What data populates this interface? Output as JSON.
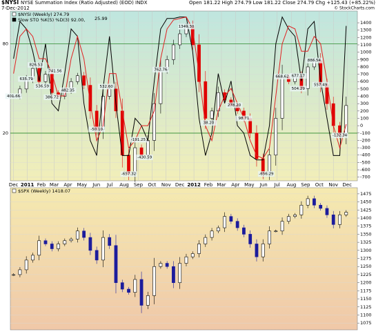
{
  "header": {
    "symbol": "$NYSI",
    "name": "NYSE Summation Index (Ratio Adjusted) (EOD)",
    "exchange": "INDX",
    "date": "7-Dec-2012",
    "ohlc": "Open 181.22  High 274.79  Low 181.22  Close 274.79  Chg +125.43 (+85.22%)",
    "credit": "© StockCharts.com"
  },
  "chart_data": [
    {
      "type": "candlestick",
      "legend": [
        "$NYSI (Weekly) 274.79",
        "Slow STO %K(5) %D(3) 92.00,",
        "25.99"
      ],
      "x": [
        0,
        2,
        4,
        6,
        8,
        10,
        12,
        14,
        16,
        18,
        20,
        22,
        24,
        26,
        28,
        30,
        32,
        34,
        36,
        38,
        40,
        42,
        44,
        46,
        48,
        50,
        52,
        54,
        56,
        58,
        60,
        62,
        64,
        66,
        68,
        70,
        72,
        74,
        76,
        78,
        80,
        82,
        84,
        86,
        88,
        90,
        92,
        94,
        96,
        98,
        100,
        102,
        104
      ],
      "xlim": [
        -1,
        107.5
      ],
      "xticks": [
        {
          "value": 0,
          "label": "Dec"
        },
        {
          "value": 4.3,
          "label": "2011"
        },
        {
          "value": 8.7,
          "label": "Feb"
        },
        {
          "value": 12.7,
          "label": "Mar"
        },
        {
          "value": 17,
          "label": "Apr"
        },
        {
          "value": 21.4,
          "label": "May"
        },
        {
          "value": 25.9,
          "label": "Jun"
        },
        {
          "value": 30.1,
          "label": "Jul"
        },
        {
          "value": 34.6,
          "label": "Aug"
        },
        {
          "value": 39,
          "label": "Sep"
        },
        {
          "value": 43.3,
          "label": "Oct"
        },
        {
          "value": 47.7,
          "label": "Nov"
        },
        {
          "value": 52,
          "label": "Dec"
        },
        {
          "value": 56.4,
          "label": "2012"
        },
        {
          "value": 60.9,
          "label": "Feb"
        },
        {
          "value": 65,
          "label": "Mar"
        },
        {
          "value": 69.4,
          "label": "Apr"
        },
        {
          "value": 73.7,
          "label": "May"
        },
        {
          "value": 78.2,
          "label": "Jun"
        },
        {
          "value": 82.4,
          "label": "Jul"
        },
        {
          "value": 86.9,
          "label": "Aug"
        },
        {
          "value": 91.3,
          "label": "Sep"
        },
        {
          "value": 95.6,
          "label": "Oct"
        },
        {
          "value": 100,
          "label": "Nov"
        },
        {
          "value": 104.3,
          "label": "Dec"
        }
      ],
      "ylim": [
        -750,
        1560
      ],
      "yticks": [
        -700,
        -600,
        -500,
        -400,
        -300,
        -200,
        -100,
        0,
        100,
        200,
        300,
        400,
        500,
        600,
        700,
        800,
        900,
        1000,
        1100,
        1200,
        1300,
        1400
      ],
      "y2lim": [
        -12,
        102
      ],
      "y2ticks": [
        20,
        80
      ],
      "series": [
        {
          "name": "$NYSI",
          "color": "#e00000",
          "values": [
            401,
            500,
            635,
            780,
            600,
            700,
            450,
            400,
            482,
            600,
            680,
            550,
            200,
            -50,
            400,
            500,
            200,
            -400,
            -657,
            -300,
            -400,
            -200,
            300,
            762,
            900,
            1100,
            1250,
            1349,
            1100,
            600,
            100,
            200,
            450,
            350,
            278,
            200,
            98,
            -100,
            -450,
            -656,
            -400,
            100,
            668,
            600,
            677,
            504,
            800,
            886,
            557,
            300,
            0,
            -132,
            274.79
          ]
        },
        {
          "name": "%K",
          "color": "#000000",
          "axis": "y2",
          "values": [
            70,
            95,
            90,
            75,
            55,
            80,
            40,
            35,
            60,
            90,
            85,
            40,
            15,
            5,
            50,
            85,
            40,
            5,
            5,
            30,
            25,
            15,
            55,
            90,
            97,
            97,
            98,
            98,
            75,
            30,
            5,
            20,
            60,
            40,
            55,
            25,
            20,
            5,
            2,
            2,
            25,
            80,
            98,
            90,
            85,
            55,
            90,
            95,
            55,
            30,
            5,
            5,
            92
          ]
        },
        {
          "name": "%D",
          "color": "#e02020",
          "axis": "y2",
          "values": [
            60,
            85,
            90,
            85,
            70,
            70,
            60,
            45,
            45,
            70,
            85,
            70,
            40,
            15,
            25,
            60,
            60,
            35,
            10,
            15,
            25,
            25,
            35,
            70,
            90,
            96,
            97,
            98,
            90,
            60,
            25,
            15,
            35,
            45,
            50,
            40,
            30,
            15,
            5,
            3,
            10,
            45,
            80,
            92,
            90,
            75,
            75,
            85,
            80,
            55,
            25,
            10,
            26
          ]
        }
      ],
      "annotations": [
        {
          "x": 0,
          "value": 401.66,
          "label": "401.66"
        },
        {
          "x": 4,
          "value": 635.79,
          "label": "635.79"
        },
        {
          "x": 7,
          "value": 826.53,
          "label": "826.53"
        },
        {
          "x": 9,
          "value": 536.59,
          "label": "536.59"
        },
        {
          "x": 13,
          "value": 741.56,
          "label": "741.56"
        },
        {
          "x": 12,
          "value": 386.72,
          "label": "386.72"
        },
        {
          "x": 17,
          "value": 482.35,
          "label": "482.35"
        },
        {
          "x": 26,
          "value": -50.1,
          "label": "-50.10"
        },
        {
          "x": 29,
          "value": 532.6,
          "label": "532.60"
        },
        {
          "x": 36,
          "value": -657.32,
          "label": "-657.32"
        },
        {
          "x": 39,
          "value": -191.25,
          "label": "-191.25"
        },
        {
          "x": 41,
          "value": -430.59,
          "label": "-430.59"
        },
        {
          "x": 46,
          "value": 762.76,
          "label": "762.76"
        },
        {
          "x": 54,
          "value": 1349.3,
          "label": "1349.30"
        },
        {
          "x": 61,
          "value": 38.2,
          "label": "38.20"
        },
        {
          "x": 69,
          "value": 278.2,
          "label": "278.20"
        },
        {
          "x": 72,
          "value": 98.71,
          "label": "98.71"
        },
        {
          "x": 79,
          "value": -656.29,
          "label": "-656.29"
        },
        {
          "x": 84,
          "value": 668.62,
          "label": "668.62"
        },
        {
          "x": 89,
          "value": 677.17,
          "label": "677.17"
        },
        {
          "x": 89,
          "value": 504.29,
          "label": "504.29"
        },
        {
          "x": 94,
          "value": 886.54,
          "label": "886.54"
        },
        {
          "x": 96,
          "value": 557.49,
          "label": "557.49"
        },
        {
          "x": 102,
          "value": -132.34,
          "label": "-132.34"
        }
      ],
      "hlines": {
        "axis": "y2",
        "values": [
          20,
          80
        ],
        "color": "#2a8a2a"
      }
    },
    {
      "type": "candlestick",
      "legend": [
        "$SPX (Weekly) 1418.07"
      ],
      "x": [
        0,
        2,
        4,
        6,
        8,
        10,
        12,
        14,
        16,
        18,
        20,
        22,
        24,
        26,
        28,
        30,
        32,
        34,
        36,
        38,
        40,
        42,
        44,
        46,
        48,
        50,
        52,
        54,
        56,
        58,
        60,
        62,
        64,
        66,
        68,
        70,
        72,
        74,
        76,
        78,
        80,
        82,
        84,
        86,
        88,
        90,
        92,
        94,
        96,
        98,
        100,
        102,
        104
      ],
      "xlim": [
        -1,
        107.5
      ],
      "ylim": [
        1054,
        1494
      ],
      "yticks": [
        1075,
        1100,
        1125,
        1150,
        1175,
        1200,
        1225,
        1250,
        1275,
        1300,
        1325,
        1350,
        1375,
        1400,
        1425,
        1450,
        1475
      ],
      "series": [
        {
          "name": "$SPX",
          "color": "#1c1c9c",
          "values": [
            1225,
            1240,
            1270,
            1285,
            1330,
            1320,
            1305,
            1320,
            1330,
            1335,
            1360,
            1340,
            1300,
            1270,
            1340,
            1315,
            1200,
            1180,
            1170,
            1210,
            1130,
            1160,
            1250,
            1260,
            1250,
            1200,
            1260,
            1280,
            1290,
            1320,
            1340,
            1360,
            1370,
            1405,
            1390,
            1370,
            1350,
            1320,
            1280,
            1320,
            1360,
            1360,
            1390,
            1405,
            1410,
            1440,
            1460,
            1440,
            1430,
            1410,
            1380,
            1410,
            1418.07
          ]
        }
      ]
    }
  ]
}
